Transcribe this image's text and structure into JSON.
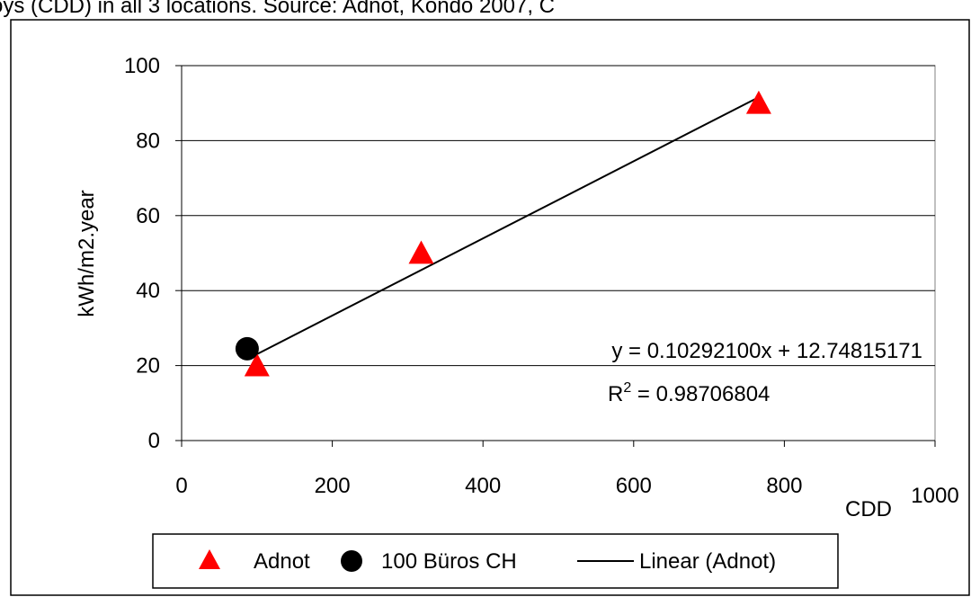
{
  "chart_data": {
    "type": "scatter",
    "title": "oys (CDD) in all 3 locations. Source: Adnot, Kondo 2007, C",
    "xlabel": "CDD",
    "ylabel": "kWh/m2.year",
    "xlim": [
      0,
      1000
    ],
    "ylim": [
      0,
      100
    ],
    "x_ticks": [
      "0",
      "200",
      "400",
      "600",
      "800",
      "1000"
    ],
    "y_ticks": [
      "0",
      "20",
      "40",
      "60",
      "80",
      "100"
    ],
    "grid": "horizontal",
    "legend_position": "bottom",
    "series": [
      {
        "name": "Adnot",
        "marker": "triangle",
        "color": "#ff0000",
        "points": [
          [
            100,
            20
          ],
          [
            318,
            50
          ],
          [
            766,
            90
          ]
        ]
      },
      {
        "name": "100 Büros CH",
        "marker": "circle",
        "color": "#000000",
        "points": [
          [
            87,
            24.5
          ]
        ]
      }
    ],
    "trendline": {
      "name": "Linear (Adnot)",
      "slope": 0.102921,
      "intercept": 12.74815171,
      "x_range": [
        87,
        766
      ],
      "color": "#000000"
    },
    "annotations": {
      "equation": "y = 0.10292100x + 12.74815171",
      "r2_base": "R",
      "r2_exp": "2",
      "r2_value": " = 0.98706804"
    }
  }
}
